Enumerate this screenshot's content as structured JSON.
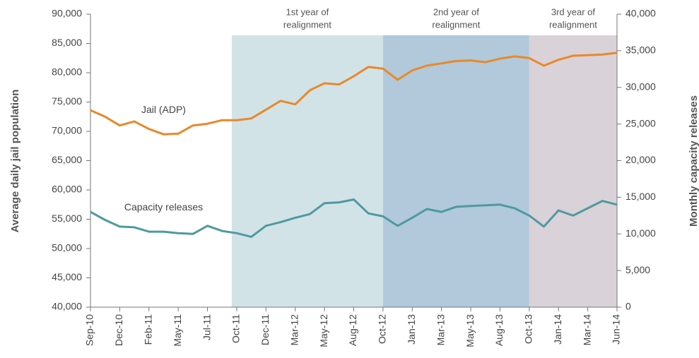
{
  "chart_data": {
    "type": "line",
    "y_title": "Average daily jail population",
    "y2_title": "Monthly capacity releases",
    "categories": [
      "Sep-10",
      null,
      "Dec-10",
      null,
      "Feb-11",
      null,
      "May-11",
      null,
      "Jul-11",
      null,
      "Oct-11",
      null,
      "Dec-11",
      null,
      "Mar-12",
      null,
      "May-12",
      null,
      "Aug-12",
      null,
      "Oct-12",
      null,
      "Jan-13",
      null,
      "Mar-13",
      null,
      "May-13",
      null,
      "Aug-13",
      null,
      "Oct-13",
      null,
      "Jan-14",
      null,
      "Mar-14",
      null,
      "Jun-14"
    ],
    "ylim": [
      40000,
      90000
    ],
    "yticks": [
      {
        "value": 40000,
        "label": "40,000"
      },
      {
        "value": 45000,
        "label": "45,000"
      },
      {
        "value": 50000,
        "label": "50,000"
      },
      {
        "value": 55000,
        "label": "55,000"
      },
      {
        "value": 60000,
        "label": "60,000"
      },
      {
        "value": 65000,
        "label": "65,000"
      },
      {
        "value": 70000,
        "label": "70,000"
      },
      {
        "value": 75000,
        "label": "75,000"
      },
      {
        "value": 80000,
        "label": "80,000"
      },
      {
        "value": 85000,
        "label": "85,000"
      },
      {
        "value": 90000,
        "label": "90,000"
      }
    ],
    "y2lim": [
      0,
      40000
    ],
    "y2ticks": [
      0,
      {
        "value": 5000,
        "label": "5,000"
      },
      {
        "value": 10000,
        "label": "10,000"
      },
      {
        "value": 15000,
        "label": "15,000"
      },
      {
        "value": 20000,
        "label": "20,000"
      },
      {
        "value": 25000,
        "label": "25,000"
      },
      {
        "value": 30000,
        "label": "30,000"
      },
      {
        "value": 35000,
        "label": "35,000"
      },
      {
        "value": 40000,
        "label": "40,000"
      }
    ],
    "bands": [
      {
        "lines": [
          "1st year of",
          "realignment"
        ],
        "start": 9.66,
        "end": 20,
        "color": "#d2e3e7"
      },
      {
        "lines": [
          "2nd year of",
          "realignment"
        ],
        "start": 20,
        "end": 30,
        "color": "#b1c9da"
      },
      {
        "lines": [
          "3rd year of",
          "realignment"
        ],
        "start": 30,
        "end": 36,
        "color": "#d9d2d8"
      }
    ],
    "series": [
      {
        "name": "Jail (ADP)",
        "color": "#e8892a",
        "label_at": 5,
        "values": [
          73600,
          72500,
          71000,
          71700,
          70400,
          69500,
          69600,
          71000,
          71300,
          71900,
          71900,
          72200,
          73700,
          75200,
          74600,
          77000,
          78200,
          78000,
          79400,
          81000,
          80700,
          78800,
          80400,
          81200,
          81600,
          82000,
          82100,
          81800,
          82400,
          82800,
          82500,
          81200,
          82200,
          82900,
          83000,
          83100,
          83400
        ]
      },
      {
        "name": "Capacity releases",
        "color": "#4e9aa0",
        "axis": "y2",
        "label_at": 5,
        "values": [
          13000,
          11900,
          11000,
          10900,
          10300,
          10300,
          10100,
          10000,
          11100,
          10400,
          10100,
          9600,
          11100,
          11600,
          12200,
          12700,
          14200,
          14300,
          14700,
          12800,
          12400,
          11100,
          12200,
          13400,
          13000,
          13700,
          13800,
          13900,
          14000,
          13500,
          12500,
          11000,
          13200,
          12500,
          13500,
          14500,
          14000
        ]
      }
    ]
  }
}
